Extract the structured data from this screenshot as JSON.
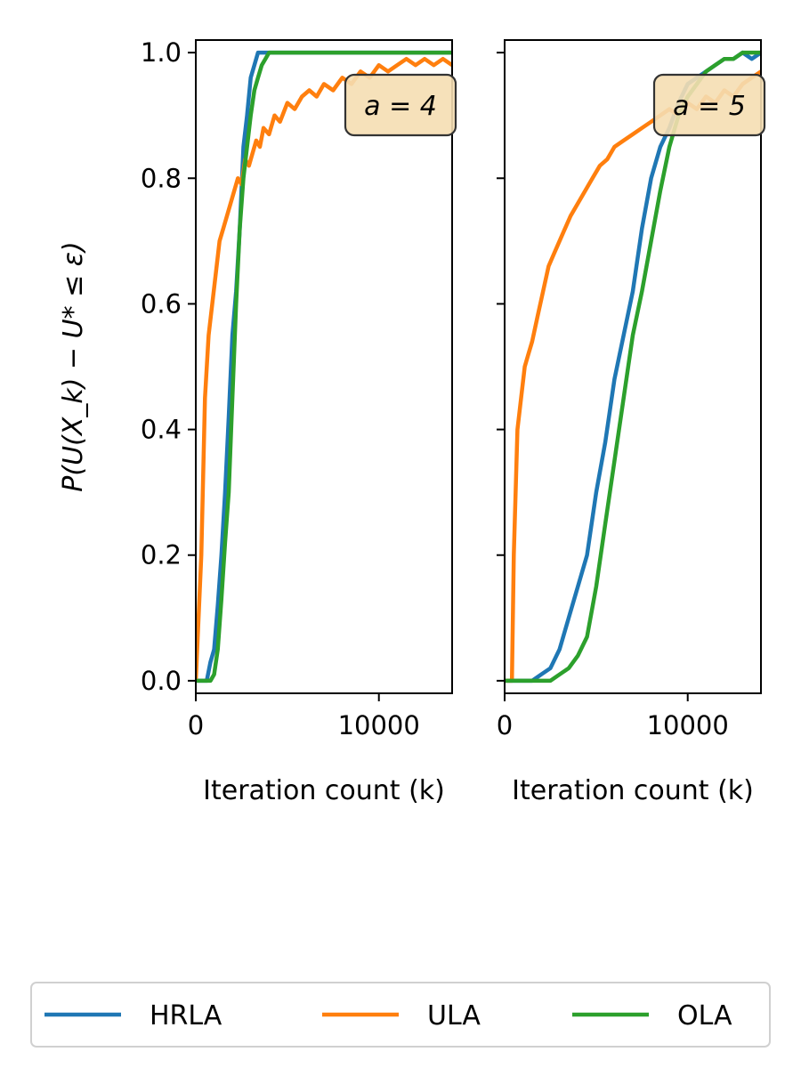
{
  "colors": {
    "HRLA": "#1f77b4",
    "ULA": "#ff7f0e",
    "OLA": "#2ca02c"
  },
  "chart_data": [
    {
      "type": "line",
      "annotation": "a = 4",
      "xlabel": "Iteration count (k)",
      "ylabel": "P(U(X_k) − U* ≤ ε)",
      "xlim": [
        0,
        14000
      ],
      "ylim": [
        -0.02,
        1.02
      ],
      "xticks": [
        0,
        10000
      ],
      "xtick_labels": [
        "0",
        "10000"
      ],
      "yticks": [
        0.0,
        0.2,
        0.4,
        0.6,
        0.8,
        1.0
      ],
      "ytick_labels": [
        "0.0",
        "0.2",
        "0.4",
        "0.6",
        "0.8",
        "1.0"
      ],
      "grid": false,
      "series": [
        {
          "name": "HRLA",
          "x": [
            0,
            600,
            800,
            1000,
            1200,
            1400,
            1600,
            1800,
            2000,
            2200,
            2400,
            2600,
            2800,
            3000,
            3200,
            3400,
            3600,
            4000,
            14000
          ],
          "y": [
            0.0,
            0.0,
            0.03,
            0.05,
            0.12,
            0.2,
            0.3,
            0.42,
            0.55,
            0.62,
            0.72,
            0.85,
            0.9,
            0.96,
            0.98,
            1.0,
            1.0,
            1.0,
            1.0
          ]
        },
        {
          "name": "ULA",
          "x": [
            0,
            300,
            500,
            700,
            900,
            1100,
            1300,
            1500,
            1700,
            1900,
            2100,
            2300,
            2500,
            2700,
            2900,
            3100,
            3300,
            3500,
            3700,
            4000,
            4300,
            4600,
            5000,
            5400,
            5800,
            6200,
            6600,
            7000,
            7500,
            8000,
            8500,
            9000,
            9500,
            10000,
            10500,
            11000,
            11500,
            12000,
            12500,
            13000,
            13500,
            14000
          ],
          "y": [
            0.0,
            0.2,
            0.45,
            0.55,
            0.6,
            0.65,
            0.7,
            0.72,
            0.74,
            0.76,
            0.78,
            0.8,
            0.79,
            0.83,
            0.82,
            0.84,
            0.86,
            0.85,
            0.88,
            0.87,
            0.9,
            0.89,
            0.92,
            0.91,
            0.93,
            0.94,
            0.93,
            0.95,
            0.94,
            0.96,
            0.95,
            0.97,
            0.96,
            0.98,
            0.97,
            0.98,
            0.99,
            0.98,
            0.99,
            0.98,
            0.99,
            0.98
          ]
        },
        {
          "name": "OLA",
          "x": [
            0,
            800,
            1000,
            1200,
            1400,
            1600,
            1800,
            2000,
            2200,
            2400,
            2600,
            2800,
            3000,
            3200,
            3400,
            3600,
            3800,
            4000,
            4200,
            14000
          ],
          "y": [
            0.0,
            0.0,
            0.01,
            0.05,
            0.13,
            0.22,
            0.3,
            0.45,
            0.6,
            0.72,
            0.8,
            0.85,
            0.9,
            0.94,
            0.96,
            0.98,
            0.99,
            1.0,
            1.0,
            1.0
          ]
        }
      ]
    },
    {
      "type": "line",
      "annotation": "a = 5",
      "xlabel": "Iteration count (k)",
      "ylabel": "",
      "xlim": [
        0,
        14000
      ],
      "ylim": [
        -0.02,
        1.02
      ],
      "xticks": [
        0,
        10000
      ],
      "xtick_labels": [
        "0",
        "10000"
      ],
      "yticks": [
        0.0,
        0.2,
        0.4,
        0.6,
        0.8,
        1.0
      ],
      "ytick_labels": [
        "",
        "",
        "",
        "",
        "",
        ""
      ],
      "grid": false,
      "series": [
        {
          "name": "HRLA",
          "x": [
            0,
            1500,
            2000,
            2500,
            3000,
            3500,
            4000,
            4500,
            5000,
            5500,
            6000,
            6500,
            7000,
            7500,
            8000,
            8500,
            9000,
            9500,
            10000,
            10500,
            11000,
            11500,
            12000,
            12500,
            13000,
            13500,
            14000
          ],
          "y": [
            0.0,
            0.0,
            0.01,
            0.02,
            0.05,
            0.1,
            0.15,
            0.2,
            0.3,
            0.38,
            0.48,
            0.55,
            0.62,
            0.72,
            0.8,
            0.85,
            0.88,
            0.92,
            0.95,
            0.96,
            0.97,
            0.98,
            0.99,
            0.99,
            1.0,
            0.99,
            1.0
          ]
        },
        {
          "name": "ULA",
          "x": [
            0,
            400,
            500,
            700,
            900,
            1100,
            1300,
            1500,
            1800,
            2100,
            2400,
            2700,
            3000,
            3300,
            3600,
            4000,
            4400,
            4800,
            5200,
            5600,
            6000,
            6500,
            7000,
            7500,
            8000,
            8500,
            9000,
            9500,
            10000,
            10500,
            11000,
            11500,
            12000,
            12500,
            13000,
            13500,
            14000
          ],
          "y": [
            0.0,
            0.0,
            0.2,
            0.4,
            0.45,
            0.5,
            0.52,
            0.54,
            0.58,
            0.62,
            0.66,
            0.68,
            0.7,
            0.72,
            0.74,
            0.76,
            0.78,
            0.8,
            0.82,
            0.83,
            0.85,
            0.86,
            0.87,
            0.88,
            0.89,
            0.9,
            0.91,
            0.9,
            0.92,
            0.91,
            0.93,
            0.92,
            0.94,
            0.93,
            0.95,
            0.96,
            0.97
          ]
        },
        {
          "name": "OLA",
          "x": [
            0,
            2500,
            3000,
            3500,
            4000,
            4500,
            5000,
            5500,
            6000,
            6500,
            7000,
            7500,
            8000,
            8500,
            9000,
            9500,
            10000,
            10500,
            11000,
            11500,
            12000,
            12500,
            13000,
            13500,
            14000
          ],
          "y": [
            0.0,
            0.0,
            0.01,
            0.02,
            0.04,
            0.07,
            0.15,
            0.25,
            0.35,
            0.45,
            0.55,
            0.62,
            0.7,
            0.78,
            0.85,
            0.9,
            0.93,
            0.95,
            0.97,
            0.98,
            0.99,
            0.99,
            1.0,
            1.0,
            1.0
          ]
        }
      ]
    }
  ],
  "legend": {
    "placement": "bottom-center",
    "items": [
      "HRLA",
      "ULA",
      "OLA"
    ]
  }
}
